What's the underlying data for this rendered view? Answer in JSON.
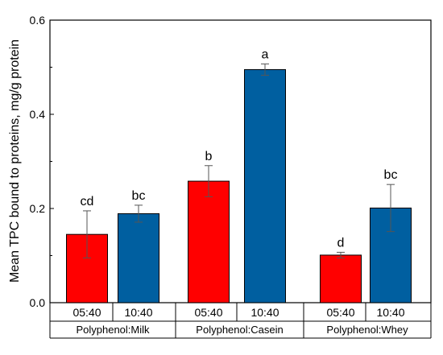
{
  "chart_data": {
    "type": "bar",
    "ylabel": "Mean TPC bound to proteins, mg/g protein",
    "ylim": [
      0,
      0.6
    ],
    "yticks": [
      0.0,
      0.2,
      0.4,
      0.6
    ],
    "ytick_labels": [
      "0.0",
      "0.2",
      "0.4",
      "0.6"
    ],
    "grid": false,
    "legend": "none",
    "groups": [
      "Polyphenol:Milk",
      "Polyphenol:Casein",
      "Polyphenol:Whey"
    ],
    "subcategories": [
      "05:40",
      "10:40"
    ],
    "series": [
      {
        "color": "#ff0000",
        "values": [
          0.145,
          0.258,
          0.101
        ],
        "errors": [
          0.05,
          0.033,
          0.006
        ],
        "letters": [
          "cd",
          "b",
          "d"
        ]
      },
      {
        "color": "#005fa0",
        "values": [
          0.189,
          0.495,
          0.201
        ],
        "errors": [
          0.018,
          0.012,
          0.05
        ],
        "letters": [
          "bc",
          "a",
          "bc"
        ]
      }
    ]
  }
}
